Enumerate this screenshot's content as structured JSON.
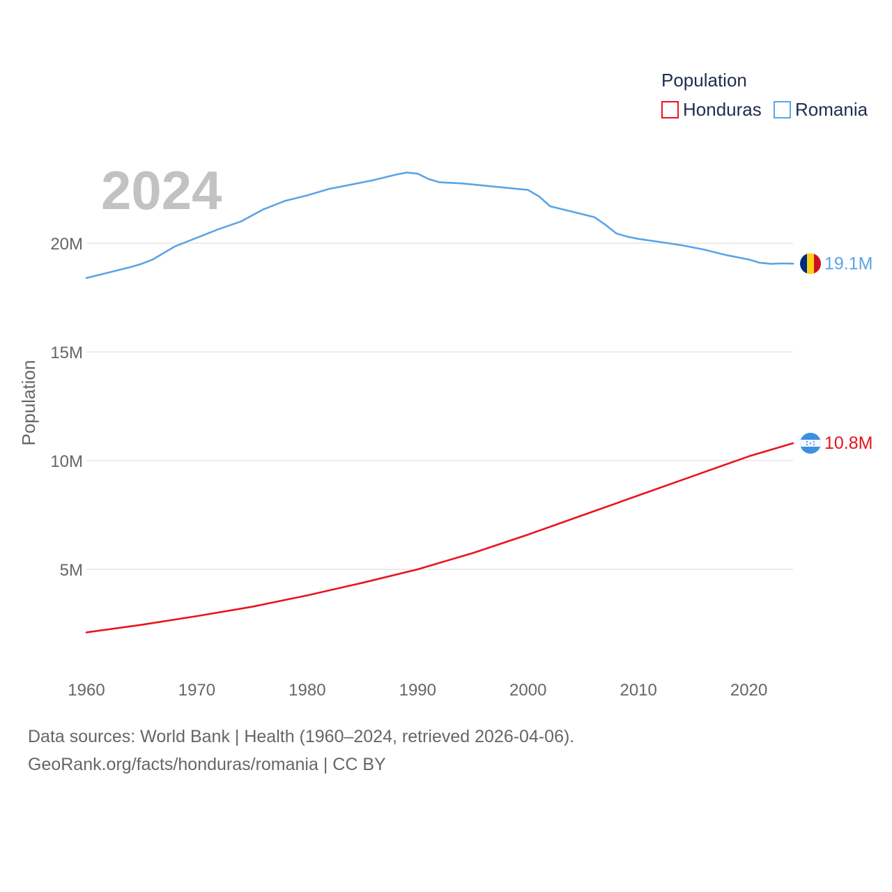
{
  "chart_data": {
    "type": "line",
    "ylabel": "Population",
    "year_label": "2024",
    "legend": {
      "title": "Population",
      "position": "top-right"
    },
    "xlim": [
      1960,
      2024
    ],
    "ylim": [
      0,
      25000000
    ],
    "x_ticks": [
      1960,
      1970,
      1980,
      1990,
      2000,
      2010,
      2020
    ],
    "y_ticks": [
      {
        "value": 5000000,
        "label": "5M"
      },
      {
        "value": 10000000,
        "label": "10M"
      },
      {
        "value": 15000000,
        "label": "15M"
      },
      {
        "value": 20000000,
        "label": "20M"
      }
    ],
    "series": [
      {
        "name": "Honduras",
        "color": "#e8141c",
        "end_label": "10.8M",
        "flag": "honduras-flag",
        "x": [
          1960,
          1965,
          1970,
          1975,
          1980,
          1985,
          1990,
          1995,
          2000,
          2005,
          2010,
          2015,
          2020,
          2024
        ],
        "values": [
          2100000,
          2450000,
          2850000,
          3280000,
          3800000,
          4380000,
          5000000,
          5750000,
          6600000,
          7500000,
          8400000,
          9300000,
          10200000,
          10800000
        ]
      },
      {
        "name": "Romania",
        "color": "#5ba4e6",
        "end_label": "19.1M",
        "flag": "romania-flag",
        "x": [
          1960,
          1962,
          1964,
          1965,
          1966,
          1967,
          1968,
          1969,
          1970,
          1972,
          1974,
          1976,
          1978,
          1980,
          1982,
          1984,
          1986,
          1988,
          1989,
          1990,
          1991,
          1992,
          1994,
          1996,
          1998,
          2000,
          2001,
          2002,
          2004,
          2006,
          2007,
          2008,
          2009,
          2010,
          2012,
          2014,
          2016,
          2018,
          2020,
          2021,
          2022,
          2023,
          2024
        ],
        "values": [
          18400000,
          18650000,
          18900000,
          19050000,
          19250000,
          19550000,
          19850000,
          20050000,
          20250000,
          20650000,
          21000000,
          21550000,
          21950000,
          22200000,
          22500000,
          22700000,
          22900000,
          23150000,
          23250000,
          23200000,
          22950000,
          22800000,
          22750000,
          22650000,
          22550000,
          22450000,
          22150000,
          21700000,
          21450000,
          21200000,
          20850000,
          20450000,
          20300000,
          20200000,
          20050000,
          19900000,
          19700000,
          19450000,
          19250000,
          19100000,
          19050000,
          19070000,
          19060000
        ]
      }
    ]
  },
  "footer": {
    "line1": "Data sources: World Bank | Health (1960–2024, retrieved 2026-04-06).",
    "line2": "GeoRank.org/facts/honduras/romania | CC BY"
  }
}
